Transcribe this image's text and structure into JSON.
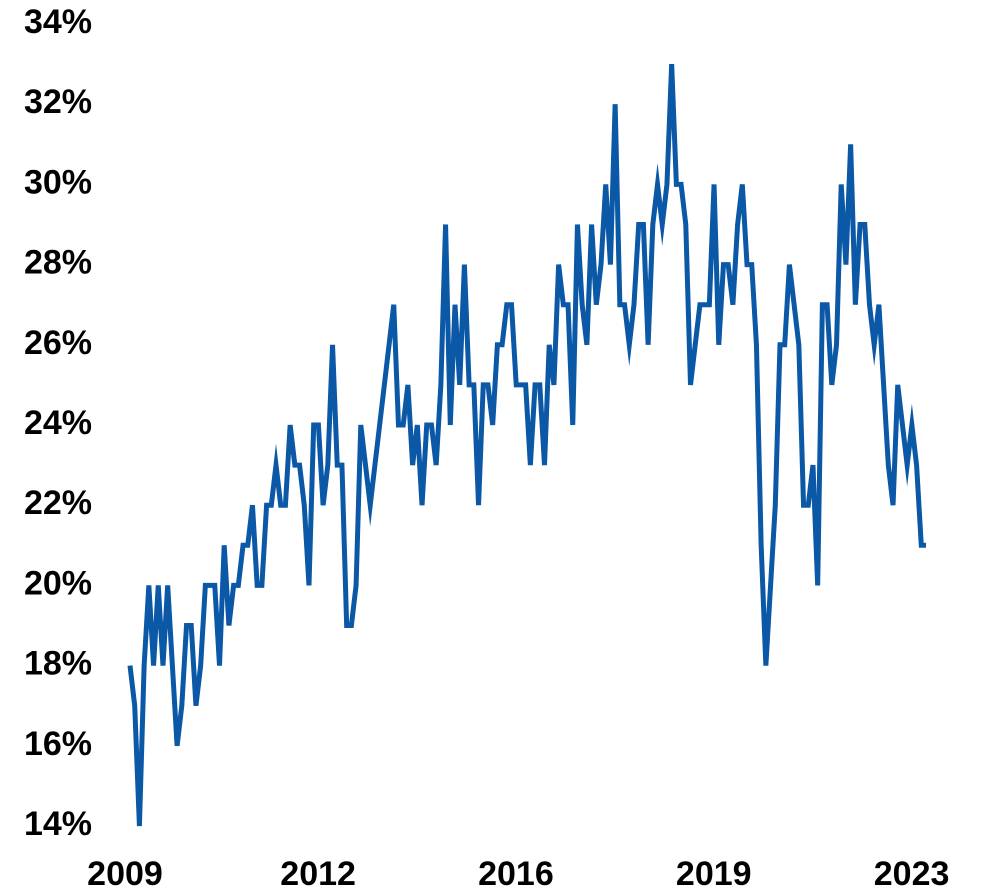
{
  "chart_data": {
    "type": "line",
    "categories": [
      "2009",
      null,
      null,
      null,
      null,
      null,
      null,
      null,
      null,
      null,
      null,
      null,
      null,
      null,
      null,
      null,
      null,
      null,
      null,
      null,
      null,
      null,
      null,
      null,
      null,
      null,
      null,
      null,
      null,
      null,
      null,
      null,
      null,
      null,
      null,
      null,
      null,
      null,
      null,
      null,
      null,
      "2012",
      null,
      null,
      null,
      null,
      null,
      null,
      null,
      null,
      null,
      null,
      null,
      null,
      null,
      null,
      null,
      null,
      null,
      null,
      null,
      null,
      null,
      null,
      null,
      null,
      null,
      null,
      null,
      null,
      null,
      null,
      null,
      null,
      null,
      null,
      null,
      null,
      null,
      null,
      null,
      null,
      null,
      "2016",
      null,
      null,
      null,
      null,
      null,
      null,
      null,
      null,
      null,
      null,
      null,
      null,
      null,
      null,
      null,
      null,
      null,
      null,
      null,
      null,
      null,
      null,
      null,
      null,
      null,
      null,
      null,
      null,
      null,
      null,
      null,
      null,
      null,
      null,
      null,
      null,
      null,
      null,
      null,
      null,
      null,
      "2019",
      null,
      null,
      null,
      null,
      null,
      null,
      null,
      null,
      null,
      null,
      null,
      null,
      null,
      null,
      null,
      null,
      null,
      null,
      null,
      null,
      null,
      null,
      null,
      null,
      null,
      null,
      null,
      null,
      null,
      null,
      null,
      null,
      null,
      null,
      null,
      null,
      null,
      null,
      null,
      null,
      null,
      "2023",
      null,
      null
    ],
    "values": [
      18,
      17,
      14,
      18,
      20,
      18,
      20,
      18,
      20,
      18,
      16,
      17,
      19,
      19,
      17,
      18,
      20,
      20,
      20,
      18,
      21,
      19,
      20,
      20,
      21,
      21,
      22,
      20,
      20,
      22,
      22,
      23,
      22,
      22,
      24,
      23,
      23,
      22,
      20,
      24,
      24,
      22,
      23,
      26,
      23,
      23,
      19,
      19,
      20,
      24,
      23,
      22,
      23,
      24,
      25,
      26,
      27,
      24,
      24,
      25,
      23,
      24,
      22,
      24,
      24,
      23,
      25,
      29,
      24,
      27,
      25,
      28,
      25,
      25,
      22,
      25,
      25,
      24,
      26,
      26,
      27,
      27,
      25,
      25,
      25,
      23,
      25,
      25,
      23,
      26,
      25,
      28,
      27,
      27,
      24,
      29,
      27,
      26,
      29,
      27,
      28,
      30,
      28,
      32,
      27,
      27,
      26,
      27,
      29,
      29,
      26,
      29,
      30,
      29,
      30,
      33,
      30,
      30,
      29,
      25,
      26,
      27,
      27,
      27,
      30,
      26,
      28,
      28,
      27,
      29,
      30,
      28,
      28,
      26,
      21,
      18,
      20,
      22,
      26,
      26,
      28,
      27,
      26,
      22,
      22,
      23,
      20,
      27,
      27,
      25,
      26,
      30,
      28,
      31,
      27,
      29,
      29,
      27,
      26,
      27,
      25,
      23,
      22,
      25,
      24,
      23,
      24,
      23,
      21,
      21
    ],
    "color": "#0a58a6",
    "ylim": [
      14,
      34
    ],
    "yticks": [
      {
        "value": 14,
        "label": "14%"
      },
      {
        "value": 16,
        "label": "16%"
      },
      {
        "value": 18,
        "label": "18%"
      },
      {
        "value": 20,
        "label": "20%"
      },
      {
        "value": 22,
        "label": "22%"
      },
      {
        "value": 24,
        "label": "24%"
      },
      {
        "value": 26,
        "label": "26%"
      },
      {
        "value": 28,
        "label": "28%"
      },
      {
        "value": 30,
        "label": "30%"
      },
      {
        "value": 32,
        "label": "32%"
      },
      {
        "value": 34,
        "label": "34%"
      }
    ],
    "grid": false
  }
}
